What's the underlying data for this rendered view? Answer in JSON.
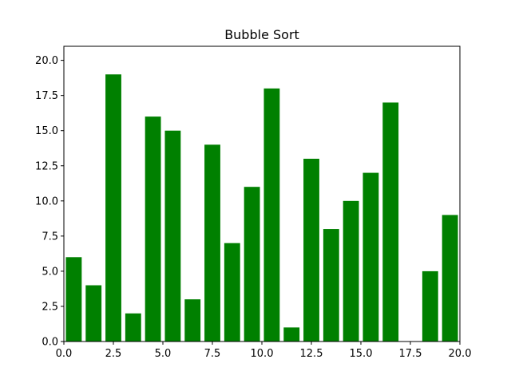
{
  "chart_data": {
    "type": "bar",
    "title": "Bubble Sort",
    "xlabel": "",
    "ylabel": "",
    "xlim": [
      0,
      20
    ],
    "ylim": [
      0,
      21
    ],
    "grid": false,
    "bar_color": "#008000",
    "bar_width": 0.8,
    "x": [
      0.5,
      1.5,
      2.5,
      3.5,
      4.5,
      5.5,
      6.5,
      7.5,
      8.5,
      9.5,
      10.5,
      11.5,
      12.5,
      13.5,
      14.5,
      15.5,
      16.5,
      17.5,
      18.5,
      19.5
    ],
    "values": [
      6,
      4,
      19,
      2,
      16,
      15,
      3,
      14,
      7,
      11,
      18,
      1,
      13,
      8,
      10,
      12,
      17,
      0,
      5,
      9
    ],
    "x_ticks": [
      0.0,
      2.5,
      5.0,
      7.5,
      10.0,
      12.5,
      15.0,
      17.5,
      20.0
    ],
    "x_tick_labels": [
      "0.0",
      "2.5",
      "5.0",
      "7.5",
      "10.0",
      "12.5",
      "15.0",
      "17.5",
      "20.0"
    ],
    "y_ticks": [
      0.0,
      2.5,
      5.0,
      7.5,
      10.0,
      12.5,
      15.0,
      17.5,
      20.0
    ],
    "y_tick_labels": [
      "0.0",
      "2.5",
      "5.0",
      "7.5",
      "10.0",
      "12.5",
      "15.0",
      "17.5",
      "20.0"
    ]
  }
}
